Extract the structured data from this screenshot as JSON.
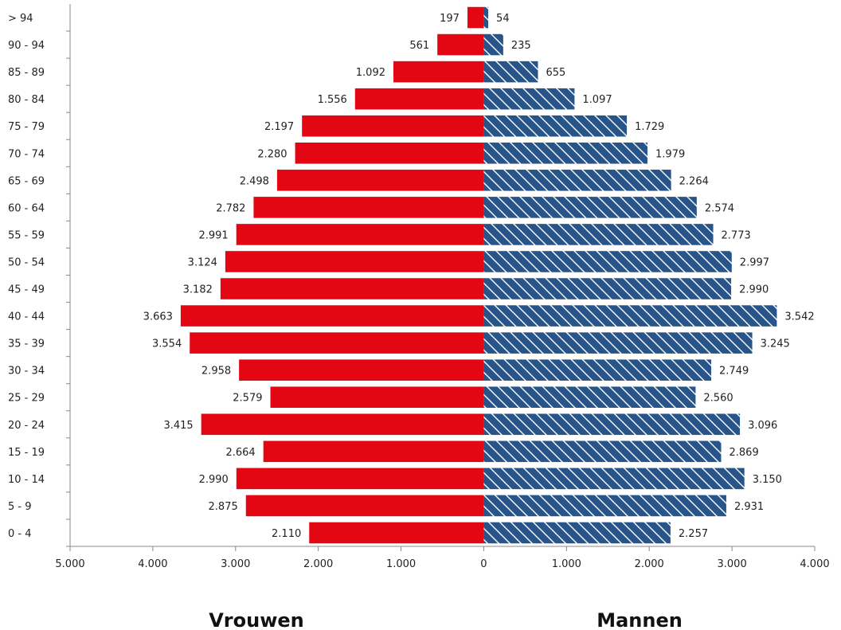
{
  "chart_data": {
    "type": "bar",
    "orientation": "horizontal",
    "layout": "population-pyramid",
    "categories": [
      "0 - 4",
      "5 - 9",
      "10 - 14",
      "15 - 19",
      "20 - 24",
      "25 - 29",
      "30 - 34",
      "35 - 39",
      "40 - 44",
      "45 - 49",
      "50 - 54",
      "55 - 59",
      "60 - 64",
      "65 - 69",
      "70 - 74",
      "75 - 79",
      "80 - 84",
      "85 - 89",
      "90 - 94",
      "> 94"
    ],
    "series": [
      {
        "name": "Vrouwen",
        "side": "left",
        "color": "#e30613",
        "values": [
          2110,
          2875,
          2990,
          2664,
          3415,
          2579,
          2958,
          3554,
          3663,
          3182,
          3124,
          2991,
          2782,
          2498,
          2280,
          2197,
          1556,
          1092,
          561,
          197
        ],
        "labels": [
          "2.110",
          "2.875",
          "2.990",
          "2.664",
          "3.415",
          "2.579",
          "2.958",
          "3.554",
          "3.663",
          "3.182",
          "3.124",
          "2.991",
          "2.782",
          "2.498",
          "2.280",
          "2.197",
          "1.556",
          "1.092",
          "561",
          "197"
        ]
      },
      {
        "name": "Mannen",
        "side": "right",
        "color": "#27558a",
        "pattern": "diagonal-hatch",
        "values": [
          2257,
          2931,
          3150,
          2869,
          3096,
          2560,
          2749,
          3245,
          3542,
          2990,
          2997,
          2773,
          2574,
          2264,
          1979,
          1729,
          1097,
          655,
          235,
          54
        ],
        "labels": [
          "2.257",
          "2.931",
          "3.150",
          "2.869",
          "3.096",
          "2.560",
          "2.749",
          "3.245",
          "3.542",
          "2.990",
          "2.997",
          "2.773",
          "2.574",
          "2.264",
          "1.979",
          "1.729",
          "1.097",
          "655",
          "235",
          "54"
        ]
      }
    ],
    "xlim": [
      -5000,
      4000
    ],
    "xticks": [
      -5000,
      -4000,
      -3000,
      -2000,
      -1000,
      0,
      1000,
      2000,
      3000,
      4000
    ],
    "xtick_labels": [
      "5.000",
      "4.000",
      "3.000",
      "2.000",
      "1.000",
      "0",
      "1.000",
      "2.000",
      "3.000",
      "4.000"
    ],
    "grid": false,
    "legend_placement": "bottom",
    "title": "",
    "xlabel": "",
    "ylabel": ""
  }
}
